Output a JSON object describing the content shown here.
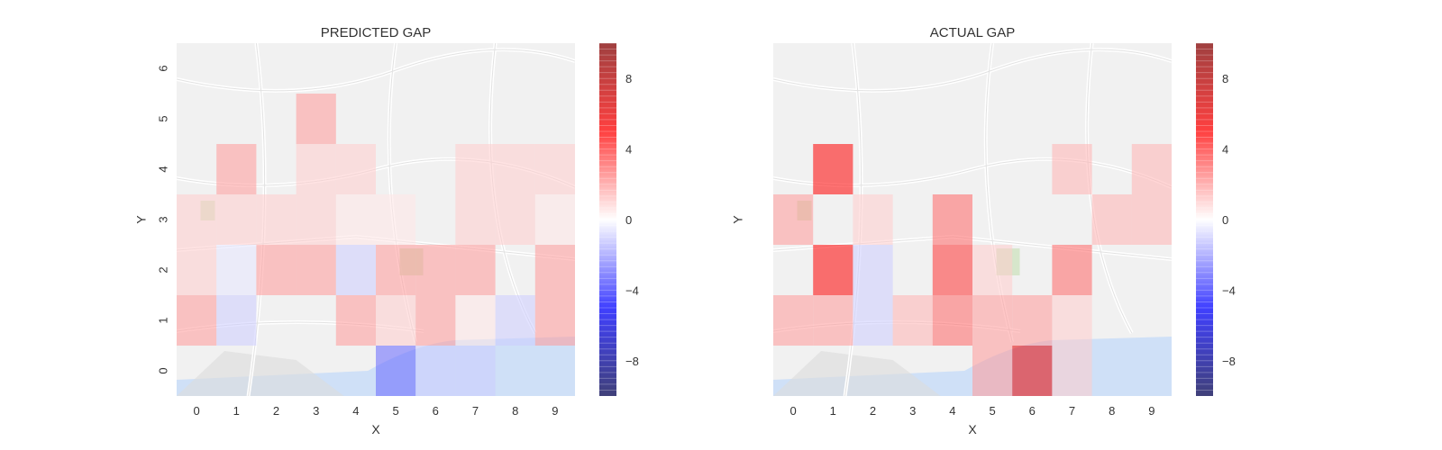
{
  "chart_data": [
    {
      "type": "heatmap",
      "title": "PREDICTED GAP",
      "xlabel": "X",
      "ylabel": "Y",
      "x_ticks": [
        "0",
        "1",
        "2",
        "3",
        "4",
        "5",
        "6",
        "7",
        "8",
        "9"
      ],
      "y_ticks": [
        "0",
        "1",
        "2",
        "3",
        "4",
        "5",
        "6"
      ],
      "colormap": "seismic",
      "vmin": -10,
      "vmax": 10,
      "colorbar_ticks": [
        8,
        4,
        0,
        -4,
        -8
      ],
      "background": "map tiles of Porto",
      "cells": [
        [
          1,
          6,
          0
        ],
        [
          3,
          6,
          0
        ],
        [
          1,
          5,
          0
        ],
        [
          3,
          5,
          2
        ],
        [
          1,
          4,
          2
        ],
        [
          3,
          4,
          1
        ],
        [
          4,
          4,
          1
        ],
        [
          7,
          4,
          1
        ],
        [
          8,
          4,
          1
        ],
        [
          9,
          4,
          1
        ],
        [
          0,
          3,
          1
        ],
        [
          1,
          3,
          1
        ],
        [
          2,
          3,
          1
        ],
        [
          3,
          3,
          1
        ],
        [
          4,
          3,
          0.5
        ],
        [
          5,
          3,
          0.5
        ],
        [
          7,
          3,
          1
        ],
        [
          8,
          3,
          1
        ],
        [
          9,
          3,
          0.5
        ],
        [
          0,
          2,
          1
        ],
        [
          1,
          2,
          -0.5
        ],
        [
          2,
          2,
          2
        ],
        [
          3,
          2,
          2
        ],
        [
          4,
          2,
          -1
        ],
        [
          5,
          2,
          2
        ],
        [
          6,
          2,
          2
        ],
        [
          7,
          2,
          2
        ],
        [
          9,
          2,
          2
        ],
        [
          0,
          1,
          2
        ],
        [
          1,
          1,
          -1
        ],
        [
          4,
          1,
          2
        ],
        [
          5,
          1,
          1
        ],
        [
          6,
          1,
          2
        ],
        [
          7,
          1,
          0.5
        ],
        [
          8,
          1,
          -1
        ],
        [
          9,
          1,
          2
        ],
        [
          0,
          0,
          0
        ],
        [
          1,
          0,
          0
        ],
        [
          2,
          0,
          0
        ],
        [
          3,
          0,
          0
        ],
        [
          4,
          0,
          0
        ],
        [
          5,
          0,
          -3
        ],
        [
          6,
          0,
          -1
        ],
        [
          7,
          0,
          -1
        ],
        [
          8,
          0,
          0
        ],
        [
          9,
          0,
          0
        ]
      ]
    },
    {
      "type": "heatmap",
      "title": "ACTUAL GAP",
      "xlabel": "X",
      "ylabel": "Y",
      "x_ticks": [
        "0",
        "1",
        "2",
        "3",
        "4",
        "5",
        "6",
        "7",
        "8",
        "9"
      ],
      "y_ticks": [],
      "colormap": "seismic",
      "vmin": -10,
      "vmax": 10,
      "colorbar_ticks": [
        8,
        4,
        0,
        -4,
        -8
      ],
      "background": "map tiles of Porto",
      "cells": [
        [
          1,
          4,
          5
        ],
        [
          7,
          4,
          1.5
        ],
        [
          9,
          4,
          1.5
        ],
        [
          0,
          3,
          2
        ],
        [
          2,
          3,
          1
        ],
        [
          4,
          3,
          3
        ],
        [
          8,
          3,
          1.5
        ],
        [
          9,
          3,
          1.5
        ],
        [
          1,
          2,
          5
        ],
        [
          2,
          2,
          -1
        ],
        [
          4,
          2,
          4
        ],
        [
          5,
          2,
          1
        ],
        [
          7,
          2,
          3
        ],
        [
          0,
          1,
          2
        ],
        [
          1,
          1,
          2
        ],
        [
          2,
          1,
          -1
        ],
        [
          3,
          1,
          1.5
        ],
        [
          4,
          1,
          3
        ],
        [
          5,
          1,
          2
        ],
        [
          6,
          1,
          2
        ],
        [
          7,
          1,
          1
        ],
        [
          5,
          0,
          2
        ],
        [
          6,
          0,
          6
        ],
        [
          7,
          0,
          1
        ]
      ]
    }
  ]
}
